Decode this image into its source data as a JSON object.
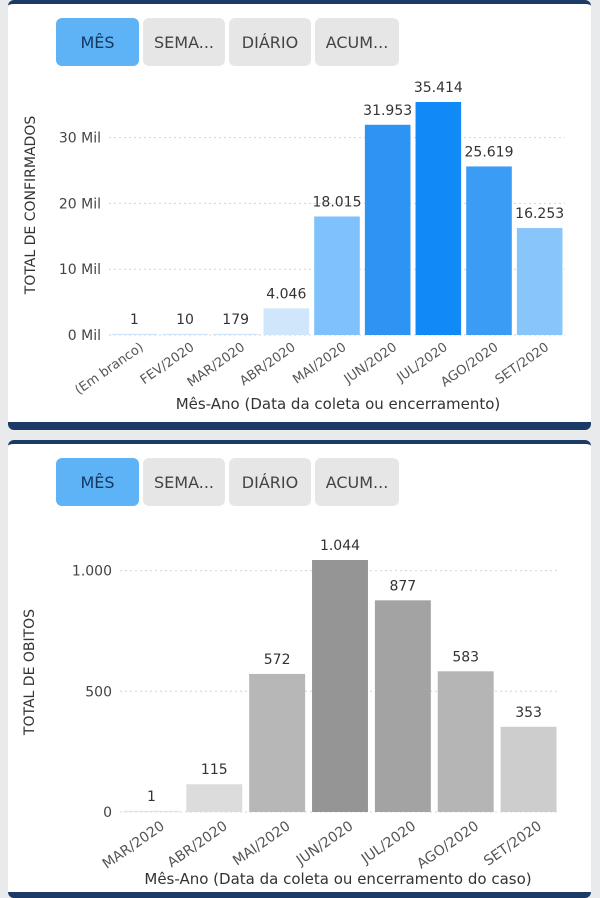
{
  "charts": [
    {
      "tabs": [
        "MÊS",
        "SEMA...",
        "DIÁRIO",
        "ACUM..."
      ],
      "active_tab": 0
    },
    {
      "tabs": [
        "MÊS",
        "SEMA...",
        "DIÁRIO",
        "ACUM..."
      ],
      "active_tab": 0
    }
  ],
  "chart_data": [
    {
      "type": "bar",
      "title": "",
      "categories": [
        "(Em branco)",
        "FEV/2020",
        "MAR/2020",
        "ABR/2020",
        "MAI/2020",
        "JUN/2020",
        "JUL/2020",
        "AGO/2020",
        "SET/2020"
      ],
      "values": [
        1,
        10,
        179,
        4046,
        18015,
        31953,
        35414,
        25619,
        16253
      ],
      "value_labels": [
        "1",
        "10",
        "179",
        "4.046",
        "18.015",
        "31.953",
        "35.414",
        "25.619",
        "16.253"
      ],
      "bar_colors": [
        "#cfe6fb",
        "#cfe6fb",
        "#cfe6fb",
        "#cfe6fb",
        "#7fc2fb",
        "#2e94f4",
        "#118af7",
        "#3a9cf5",
        "#87c5fb"
      ],
      "xlabel": "Mês-Ano (Data da coleta ou encerramento)",
      "ylabel": "TOTAL DE CONFIRMADOS",
      "yticks": [
        0,
        10000,
        20000,
        30000
      ],
      "ytick_labels": [
        "0 Mil",
        "10 Mil",
        "20 Mil",
        "30 Mil"
      ],
      "ylim": [
        0,
        35414
      ],
      "grid": true
    },
    {
      "type": "bar",
      "title": "",
      "categories": [
        "MAR/2020",
        "ABR/2020",
        "MAI/2020",
        "JUN/2020",
        "JUL/2020",
        "AGO/2020",
        "SET/2020"
      ],
      "values": [
        1,
        115,
        572,
        1044,
        877,
        583,
        353
      ],
      "value_labels": [
        "1",
        "115",
        "572",
        "1.044",
        "877",
        "583",
        "353"
      ],
      "bar_colors": [
        "#e3e3e3",
        "#dcdcdc",
        "#b7b7b7",
        "#959595",
        "#a3a3a3",
        "#b5b5b5",
        "#cdcdcd"
      ],
      "xlabel": "Mês-Ano (Data da coleta ou encerramento do caso)",
      "ylabel": "TOTAL DE OBITOS",
      "yticks": [
        0,
        500,
        1000
      ],
      "ytick_labels": [
        "0",
        "500",
        "1.000"
      ],
      "ylim": [
        0,
        1044
      ],
      "grid": true
    }
  ]
}
